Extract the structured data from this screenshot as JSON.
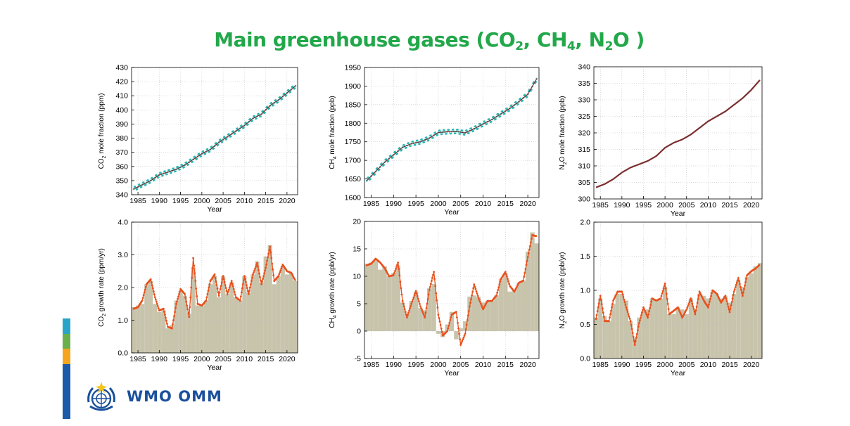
{
  "title": {
    "pre": "Main greenhouse gases (CO",
    "s1": "2",
    "m1": ", CH",
    "s2": "4",
    "m2": ", N",
    "s3": "2",
    "post": "O )"
  },
  "logo": {
    "text": "WMO OMM"
  },
  "colors": {
    "title": "#22a84a",
    "bars": "#c8c4ac",
    "growth_line": "#e8501c",
    "ch4_obs": "#2bb7b3",
    "co2_obs": "#2bb7b3",
    "mean_line": "#7a2f2f",
    "stripe": [
      "#2aa5c8",
      "#6ab04c",
      "#f5a41b",
      "#1a5aa8"
    ]
  },
  "chart_data": [
    {
      "type": "line",
      "id": "co2-mole",
      "xlabel": "Year",
      "ylabel": "CO2 mole fraction (ppm)",
      "ylabel_main": "CO",
      "ylabel_sub": "2",
      "ylabel_rest": " mole fraction (ppm)",
      "xlim": [
        1983.5,
        2022.5
      ],
      "ylim": [
        340,
        430
      ],
      "xticks": [
        1985,
        1990,
        1995,
        2000,
        2005,
        2010,
        2015,
        2020
      ],
      "yticks": [
        340,
        350,
        360,
        370,
        380,
        390,
        400,
        410,
        420,
        430
      ],
      "x": [
        1984,
        1986,
        1988,
        1990,
        1992,
        1994,
        1996,
        1998,
        2000,
        2002,
        2004,
        2006,
        2008,
        2010,
        2012,
        2014,
        2016,
        2018,
        2020,
        2022
      ],
      "y": [
        344,
        347,
        350,
        354,
        356,
        358,
        361,
        365,
        369,
        372,
        377,
        381,
        385,
        389,
        394,
        397,
        403,
        407,
        412,
        417
      ],
      "seasonal_amplitude": 1.5
    },
    {
      "type": "line",
      "id": "ch4-mole",
      "xlabel": "Year",
      "ylabel": "CH4 mole fraction (ppb)",
      "ylabel_main": "CH",
      "ylabel_sub": "4",
      "ylabel_rest": " mole fraction (ppb)",
      "xlim": [
        1983.5,
        2022.5
      ],
      "ylim": [
        1600,
        1950
      ],
      "xticks": [
        1985,
        1990,
        1995,
        2000,
        2005,
        2010,
        2015,
        2020
      ],
      "yticks": [
        1600,
        1650,
        1700,
        1750,
        1800,
        1850,
        1900,
        1950
      ],
      "x": [
        1984,
        1986,
        1988,
        1990,
        1992,
        1994,
        1996,
        1998,
        2000,
        2002,
        2004,
        2006,
        2008,
        2010,
        2012,
        2014,
        2016,
        2018,
        2020,
        2022
      ],
      "y": [
        1645,
        1670,
        1695,
        1715,
        1735,
        1745,
        1750,
        1760,
        1775,
        1777,
        1778,
        1774,
        1785,
        1798,
        1810,
        1825,
        1840,
        1858,
        1878,
        1920
      ],
      "seasonal_amplitude": 6
    },
    {
      "type": "line",
      "id": "n2o-mole",
      "xlabel": "Year",
      "ylabel": "N2O mole fraction (ppb)",
      "ylabel_main": "N",
      "ylabel_sub": "2",
      "ylabel_rest": "O mole fraction (ppb)",
      "xlim": [
        1983.5,
        2022.5
      ],
      "ylim": [
        300,
        340
      ],
      "xticks": [
        1985,
        1990,
        1995,
        2000,
        2005,
        2010,
        2015,
        2020
      ],
      "yticks": [
        300,
        305,
        310,
        315,
        320,
        325,
        330,
        335,
        340
      ],
      "x": [
        1984,
        1986,
        1988,
        1990,
        1992,
        1994,
        1996,
        1998,
        2000,
        2002,
        2004,
        2006,
        2008,
        2010,
        2012,
        2014,
        2016,
        2018,
        2020,
        2022
      ],
      "y": [
        303.5,
        304.5,
        306,
        308,
        309.5,
        310.5,
        311.5,
        313,
        315.5,
        317,
        318,
        319.5,
        321.5,
        323.5,
        325,
        326.5,
        328.5,
        330.5,
        333,
        336
      ],
      "seasonal_amplitude": 0.15
    },
    {
      "type": "bar",
      "id": "co2-growth",
      "xlabel": "Year",
      "ylabel": "CO2 growth rate (ppm/yr)",
      "ylabel_main": "CO",
      "ylabel_sub": "2",
      "ylabel_rest": " growth rate (ppm/yr)",
      "xlim": [
        1983.5,
        2022.5
      ],
      "ylim": [
        0,
        4
      ],
      "xticks": [
        1985,
        1990,
        1995,
        2000,
        2005,
        2010,
        2015,
        2020
      ],
      "yticks": [
        0,
        1,
        2,
        3,
        4
      ],
      "ytick_labels": [
        "0.0",
        "1.0",
        "2.0",
        "3.0",
        "4.0"
      ],
      "categories": [
        1984,
        1985,
        1986,
        1987,
        1988,
        1989,
        1990,
        1991,
        1992,
        1993,
        1994,
        1995,
        1996,
        1997,
        1998,
        1999,
        2000,
        2001,
        2002,
        2003,
        2004,
        2005,
        2006,
        2007,
        2008,
        2009,
        2010,
        2011,
        2012,
        2013,
        2014,
        2015,
        2016,
        2017,
        2018,
        2019,
        2020,
        2021,
        2022
      ],
      "values": [
        1.4,
        1.45,
        1.5,
        2.1,
        2.2,
        1.5,
        1.25,
        1.3,
        0.75,
        0.85,
        1.6,
        1.9,
        1.75,
        1.2,
        2.6,
        1.45,
        1.45,
        1.6,
        2.1,
        2.35,
        1.7,
        2.35,
        1.8,
        2.15,
        1.7,
        1.6,
        2.35,
        1.85,
        2.4,
        2.8,
        2.15,
        2.95,
        3.3,
        2.1,
        2.35,
        2.65,
        2.4,
        2.45,
        2.2
      ],
      "line_x": [
        1984,
        1985,
        1986,
        1987,
        1988,
        1989,
        1990,
        1991,
        1992,
        1993,
        1994,
        1995,
        1996,
        1997,
        1998,
        1999,
        2000,
        2001,
        2002,
        2003,
        2004,
        2005,
        2006,
        2007,
        2008,
        2009,
        2010,
        2011,
        2012,
        2013,
        2014,
        2015,
        2016,
        2017,
        2018,
        2019,
        2020,
        2021,
        2022
      ],
      "line_y": [
        1.35,
        1.4,
        1.6,
        2.1,
        2.25,
        1.7,
        1.3,
        1.35,
        0.8,
        0.75,
        1.5,
        1.95,
        1.8,
        1.1,
        2.9,
        1.5,
        1.45,
        1.6,
        2.2,
        2.4,
        1.75,
        2.35,
        1.8,
        2.2,
        1.7,
        1.6,
        2.35,
        1.8,
        2.4,
        2.75,
        2.1,
        2.6,
        3.25,
        2.2,
        2.35,
        2.7,
        2.5,
        2.45,
        2.2
      ]
    },
    {
      "type": "bar",
      "id": "ch4-growth",
      "xlabel": "Year",
      "ylabel": "CH4 growth rate (ppb/yr)",
      "ylabel_main": "CH",
      "ylabel_sub": "4",
      "ylabel_rest": " growth rate (ppb/yr)",
      "xlim": [
        1983.5,
        2022.5
      ],
      "ylim": [
        -5,
        20
      ],
      "xticks": [
        1985,
        1990,
        1995,
        2000,
        2005,
        2010,
        2015,
        2020
      ],
      "yticks": [
        -5,
        0,
        5,
        10,
        15,
        20
      ],
      "categories": [
        1984,
        1985,
        1986,
        1987,
        1988,
        1989,
        1990,
        1991,
        1992,
        1993,
        1994,
        1995,
        1996,
        1997,
        1998,
        1999,
        2000,
        2001,
        2002,
        2003,
        2004,
        2005,
        2006,
        2007,
        2008,
        2009,
        2010,
        2011,
        2012,
        2013,
        2014,
        2015,
        2016,
        2017,
        2018,
        2019,
        2020,
        2021,
        2022
      ],
      "values": [
        12.3,
        12.5,
        12.8,
        11.2,
        11.8,
        10,
        10.6,
        12,
        5.2,
        3.2,
        5.5,
        7.2,
        4.2,
        3.8,
        7.8,
        8.6,
        -0.5,
        -1.1,
        1.2,
        3.5,
        -1.5,
        0.5,
        1.8,
        6.3,
        6.5,
        6.2,
        5.2,
        5.5,
        5.5,
        6.5,
        9.5,
        10.5,
        7.2,
        7.5,
        8.8,
        9.2,
        14.5,
        18,
        16
      ],
      "line_x": [
        1984,
        1985,
        1986,
        1987,
        1988,
        1989,
        1990,
        1991,
        1992,
        1993,
        1994,
        1995,
        1996,
        1997,
        1998,
        1999,
        2000,
        2001,
        2002,
        2003,
        2004,
        2005,
        2006,
        2007,
        2008,
        2009,
        2010,
        2011,
        2012,
        2013,
        2014,
        2015,
        2016,
        2017,
        2018,
        2019,
        2020,
        2021,
        2022
      ],
      "line_y": [
        12,
        12.3,
        13.2,
        12.5,
        11.5,
        10,
        10.2,
        12.5,
        5.5,
        2.5,
        5,
        7.3,
        4.5,
        2.5,
        7.5,
        10.8,
        3,
        -0.8,
        0,
        3,
        3.5,
        -2.5,
        -0.5,
        4.5,
        8.5,
        6,
        4,
        5.5,
        5.5,
        6.5,
        9.5,
        10.8,
        8.2,
        7.2,
        8.8,
        9.2,
        13.5,
        17.5,
        17.3
      ]
    },
    {
      "type": "bar",
      "id": "n2o-growth",
      "xlabel": "Year",
      "ylabel": "N2O growth rate (ppb/yr)",
      "ylabel_main": "N",
      "ylabel_sub": "2",
      "ylabel_rest": "O growth rate (ppb/yr)",
      "xlim": [
        1983.5,
        2022.5
      ],
      "ylim": [
        0,
        2
      ],
      "xticks": [
        1985,
        1990,
        1995,
        2000,
        2005,
        2010,
        2015,
        2020
      ],
      "yticks": [
        0,
        0.5,
        1,
        1.5,
        2
      ],
      "ytick_labels": [
        "0.0",
        "0.5",
        "1.0",
        "1.5",
        "2.0"
      ],
      "categories": [
        1984,
        1985,
        1986,
        1987,
        1988,
        1989,
        1990,
        1991,
        1992,
        1993,
        1994,
        1995,
        1996,
        1997,
        1998,
        1999,
        2000,
        2001,
        2002,
        2003,
        2004,
        2005,
        2006,
        2007,
        2008,
        2009,
        2010,
        2011,
        2012,
        2013,
        2014,
        2015,
        2016,
        2017,
        2018,
        2019,
        2020,
        2021,
        2022
      ],
      "values": [
        0.6,
        0.88,
        0.62,
        0.55,
        0.8,
        0.95,
        0.95,
        0.85,
        0.55,
        0.3,
        0.6,
        0.7,
        0.72,
        0.88,
        0.85,
        0.88,
        1.05,
        0.65,
        0.65,
        0.75,
        0.72,
        0.65,
        0.88,
        0.72,
        0.95,
        0.92,
        0.88,
        0.98,
        0.95,
        0.88,
        0.92,
        0.82,
        0.95,
        1.15,
        1.05,
        1.2,
        1.25,
        1.35,
        1.4
      ],
      "line_x": [
        1984,
        1985,
        1986,
        1987,
        1988,
        1989,
        1990,
        1991,
        1992,
        1993,
        1994,
        1995,
        1996,
        1997,
        1998,
        1999,
        2000,
        2001,
        2002,
        2003,
        2004,
        2005,
        2006,
        2007,
        2008,
        2009,
        2010,
        2011,
        2012,
        2013,
        2014,
        2015,
        2016,
        2017,
        2018,
        2019,
        2020,
        2021,
        2022
      ],
      "line_y": [
        0.58,
        0.92,
        0.55,
        0.55,
        0.85,
        0.98,
        0.98,
        0.75,
        0.55,
        0.2,
        0.52,
        0.75,
        0.6,
        0.88,
        0.85,
        0.88,
        1.1,
        0.65,
        0.7,
        0.75,
        0.6,
        0.72,
        0.88,
        0.65,
        0.98,
        0.85,
        0.75,
        1.0,
        0.95,
        0.82,
        0.92,
        0.68,
        0.98,
        1.18,
        0.92,
        1.22,
        1.28,
        1.32,
        1.38
      ]
    }
  ]
}
